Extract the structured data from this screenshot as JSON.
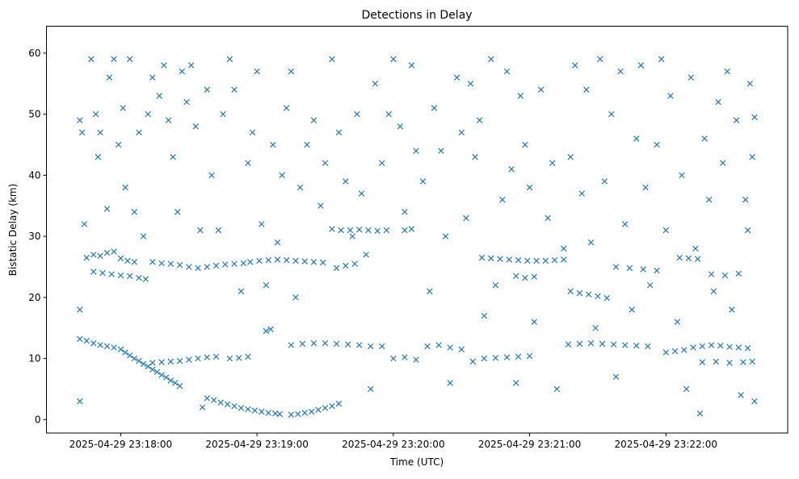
{
  "chart_data": {
    "type": "scatter",
    "title": "Detections in Delay",
    "xlabel": "Time (UTC)",
    "ylabel": "Bistatic Delay (km)",
    "x_unit": "seconds relative to 2025-04-29 23:18:00",
    "xlim": [
      -32.7,
      293.6
    ],
    "ylim": [
      -2.2,
      64.4
    ],
    "grid": false,
    "marker": "x",
    "color": "#1f77b4",
    "x_ticks": [
      {
        "value": 0,
        "label": "2025-04-29 23:18:00"
      },
      {
        "value": 60,
        "label": "2025-04-29 23:19:00"
      },
      {
        "value": 120,
        "label": "2025-04-29 23:20:00"
      },
      {
        "value": 180,
        "label": "2025-04-29 23:21:00"
      },
      {
        "value": 240,
        "label": "2025-04-29 23:22:00"
      }
    ],
    "y_ticks": [
      {
        "value": 0,
        "label": "0"
      },
      {
        "value": 10,
        "label": "10"
      },
      {
        "value": 20,
        "label": "20"
      },
      {
        "value": 30,
        "label": "30"
      },
      {
        "value": 40,
        "label": "40"
      },
      {
        "value": 50,
        "label": "50"
      },
      {
        "value": 60,
        "label": "60"
      }
    ],
    "points": [
      [
        0,
        11.5
      ],
      [
        2,
        11
      ],
      [
        4,
        10.5
      ],
      [
        6,
        10
      ],
      [
        8,
        9.6
      ],
      [
        10,
        9.1
      ],
      [
        12,
        8.7
      ],
      [
        14,
        8.2
      ],
      [
        16,
        7.8
      ],
      [
        18,
        7.3
      ],
      [
        20,
        6.9
      ],
      [
        22,
        6.4
      ],
      [
        24,
        6
      ],
      [
        26,
        5.5
      ],
      [
        38,
        3.5
      ],
      [
        41,
        3.2
      ],
      [
        44,
        2.8
      ],
      [
        47,
        2.5
      ],
      [
        50,
        2.2
      ],
      [
        53,
        1.9
      ],
      [
        56,
        1.7
      ],
      [
        59,
        1.5
      ],
      [
        62,
        1.3
      ],
      [
        65,
        1.1
      ],
      [
        68,
        1
      ],
      [
        70,
        0.9
      ],
      [
        75,
        0.8
      ],
      [
        78,
        0.9
      ],
      [
        81,
        1.1
      ],
      [
        84,
        1.3
      ],
      [
        87,
        1.6
      ],
      [
        90,
        1.9
      ],
      [
        93,
        2.2
      ],
      [
        96,
        2.6
      ],
      [
        -15,
        26.5
      ],
      [
        -12,
        27
      ],
      [
        -9,
        26.8
      ],
      [
        -6,
        27.3
      ],
      [
        -3,
        27.5
      ],
      [
        0,
        26.4
      ],
      [
        3,
        26
      ],
      [
        6,
        25.8
      ],
      [
        -12,
        24.2
      ],
      [
        -8,
        24
      ],
      [
        -4,
        23.8
      ],
      [
        0,
        23.6
      ],
      [
        4,
        23.5
      ],
      [
        8,
        23.2
      ],
      [
        11,
        23
      ],
      [
        14,
        25.8
      ],
      [
        18,
        25.6
      ],
      [
        22,
        25.5
      ],
      [
        26,
        25.3
      ],
      [
        30,
        25
      ],
      [
        34,
        24.8
      ],
      [
        38,
        25
      ],
      [
        42,
        25.2
      ],
      [
        46,
        25.4
      ],
      [
        50,
        25.5
      ],
      [
        54,
        25.6
      ],
      [
        57,
        25.8
      ],
      [
        61,
        26
      ],
      [
        65,
        26.1
      ],
      [
        69,
        26.2
      ],
      [
        73,
        26.1
      ],
      [
        77,
        26
      ],
      [
        81,
        25.9
      ],
      [
        85,
        25.8
      ],
      [
        89,
        25.7
      ],
      [
        95,
        24.8
      ],
      [
        99,
        25.2
      ],
      [
        103,
        25.5
      ],
      [
        159,
        26.5
      ],
      [
        163,
        26.4
      ],
      [
        167,
        26.3
      ],
      [
        171,
        26.2
      ],
      [
        175,
        26.1
      ],
      [
        179,
        26
      ],
      [
        183,
        26
      ],
      [
        187,
        26
      ],
      [
        191,
        26.1
      ],
      [
        195,
        26.2
      ],
      [
        174,
        23.5
      ],
      [
        178,
        23.2
      ],
      [
        182,
        23.4
      ],
      [
        198,
        21
      ],
      [
        202,
        20.7
      ],
      [
        206,
        20.5
      ],
      [
        210,
        20.2
      ],
      [
        214,
        19.9
      ],
      [
        218,
        25
      ],
      [
        224,
        24.8
      ],
      [
        230,
        24.6
      ],
      [
        236,
        24.4
      ],
      [
        246,
        26.5
      ],
      [
        250,
        26.4
      ],
      [
        254,
        26.3
      ],
      [
        260,
        23.8
      ],
      [
        266,
        23.6
      ],
      [
        272,
        23.9
      ],
      [
        -18,
        13.2
      ],
      [
        -15,
        12.9
      ],
      [
        -12,
        12.5
      ],
      [
        -9,
        12.2
      ],
      [
        -6,
        12
      ],
      [
        -3,
        11.8
      ],
      [
        75,
        12.2
      ],
      [
        80,
        12.4
      ],
      [
        85,
        12.5
      ],
      [
        90,
        12.5
      ],
      [
        95,
        12.4
      ],
      [
        100,
        12.3
      ],
      [
        105,
        12.2
      ],
      [
        110,
        12
      ],
      [
        115,
        12
      ],
      [
        120,
        10
      ],
      [
        125,
        10.2
      ],
      [
        130,
        9.8
      ],
      [
        135,
        12
      ],
      [
        140,
        12.2
      ],
      [
        145,
        11.8
      ],
      [
        150,
        11.5
      ],
      [
        155,
        9.5
      ],
      [
        160,
        10
      ],
      [
        165,
        10.1
      ],
      [
        170,
        10.2
      ],
      [
        175,
        10.3
      ],
      [
        180,
        10.4
      ],
      [
        197,
        12.3
      ],
      [
        202,
        12.4
      ],
      [
        207,
        12.5
      ],
      [
        212,
        12.4
      ],
      [
        217,
        12.3
      ],
      [
        222,
        12.2
      ],
      [
        227,
        12.1
      ],
      [
        232,
        12
      ],
      [
        240,
        11
      ],
      [
        244,
        11.2
      ],
      [
        248,
        11.4
      ],
      [
        252,
        11.8
      ],
      [
        256,
        12
      ],
      [
        260,
        12.2
      ],
      [
        264,
        12.1
      ],
      [
        268,
        11.9
      ],
      [
        272,
        11.8
      ],
      [
        276,
        11.7
      ],
      [
        14,
        9.3
      ],
      [
        18,
        9.4
      ],
      [
        22,
        9.5
      ],
      [
        26,
        9.6
      ],
      [
        30,
        9.8
      ],
      [
        34,
        10
      ],
      [
        38,
        10.2
      ],
      [
        42,
        10.3
      ],
      [
        48,
        10
      ],
      [
        52,
        10.1
      ],
      [
        56,
        10.3
      ],
      [
        64,
        14.5
      ],
      [
        66,
        14.8
      ],
      [
        256,
        9.4
      ],
      [
        262,
        9.5
      ],
      [
        268,
        9.3
      ],
      [
        274,
        9.4
      ],
      [
        278,
        9.5
      ],
      [
        93,
        31.2
      ],
      [
        97,
        31
      ],
      [
        101,
        31
      ],
      [
        105,
        31.1
      ],
      [
        109,
        31
      ],
      [
        113,
        30.9
      ],
      [
        117,
        31
      ],
      [
        125,
        31
      ],
      [
        128,
        31.2
      ],
      [
        276,
        31
      ],
      [
        -18,
        49
      ],
      [
        -17,
        47
      ],
      [
        -16,
        32
      ],
      [
        -18,
        18
      ],
      [
        -18,
        3
      ],
      [
        -13,
        59
      ],
      [
        -11,
        50
      ],
      [
        -10,
        43
      ],
      [
        -9,
        47
      ],
      [
        -6,
        34.5
      ],
      [
        -5,
        56
      ],
      [
        -3,
        59
      ],
      [
        -1,
        45
      ],
      [
        1,
        51
      ],
      [
        2,
        38
      ],
      [
        4,
        59
      ],
      [
        6,
        34
      ],
      [
        8,
        47
      ],
      [
        10,
        30
      ],
      [
        12,
        50
      ],
      [
        14,
        56
      ],
      [
        17,
        53
      ],
      [
        19,
        58
      ],
      [
        21,
        49
      ],
      [
        23,
        43
      ],
      [
        25,
        34
      ],
      [
        27,
        57
      ],
      [
        29,
        52
      ],
      [
        31,
        58
      ],
      [
        33,
        48
      ],
      [
        35,
        31
      ],
      [
        36,
        2
      ],
      [
        38,
        54
      ],
      [
        40,
        40
      ],
      [
        43,
        31
      ],
      [
        45,
        50
      ],
      [
        48,
        59
      ],
      [
        50,
        54
      ],
      [
        53,
        21
      ],
      [
        56,
        42
      ],
      [
        58,
        47
      ],
      [
        60,
        57
      ],
      [
        62,
        32
      ],
      [
        64,
        22
      ],
      [
        67,
        45
      ],
      [
        69,
        29
      ],
      [
        71,
        40
      ],
      [
        73,
        51
      ],
      [
        75,
        57
      ],
      [
        77,
        20
      ],
      [
        79,
        38
      ],
      [
        82,
        45
      ],
      [
        85,
        49
      ],
      [
        88,
        35
      ],
      [
        90,
        42
      ],
      [
        93,
        59
      ],
      [
        96,
        47
      ],
      [
        99,
        39
      ],
      [
        102,
        30
      ],
      [
        104,
        50
      ],
      [
        106,
        37
      ],
      [
        108,
        27
      ],
      [
        110,
        5
      ],
      [
        112,
        55
      ],
      [
        115,
        42
      ],
      [
        118,
        50
      ],
      [
        120,
        59
      ],
      [
        123,
        48
      ],
      [
        125,
        34
      ],
      [
        128,
        58
      ],
      [
        130,
        44
      ],
      [
        133,
        39
      ],
      [
        136,
        21
      ],
      [
        138,
        51
      ],
      [
        141,
        44
      ],
      [
        143,
        30
      ],
      [
        145,
        6
      ],
      [
        148,
        56
      ],
      [
        150,
        47
      ],
      [
        152,
        33
      ],
      [
        154,
        55
      ],
      [
        156,
        43
      ],
      [
        158,
        49
      ],
      [
        160,
        17
      ],
      [
        163,
        59
      ],
      [
        165,
        22
      ],
      [
        168,
        36
      ],
      [
        170,
        57
      ],
      [
        172,
        41
      ],
      [
        174,
        6
      ],
      [
        176,
        53
      ],
      [
        178,
        45
      ],
      [
        180,
        38
      ],
      [
        182,
        16
      ],
      [
        185,
        54
      ],
      [
        188,
        33
      ],
      [
        190,
        42
      ],
      [
        192,
        5
      ],
      [
        195,
        28
      ],
      [
        198,
        43
      ],
      [
        200,
        58
      ],
      [
        203,
        37
      ],
      [
        205,
        54
      ],
      [
        207,
        29
      ],
      [
        209,
        15
      ],
      [
        211,
        59
      ],
      [
        213,
        39
      ],
      [
        216,
        50
      ],
      [
        218,
        7
      ],
      [
        220,
        57
      ],
      [
        222,
        32
      ],
      [
        225,
        18
      ],
      [
        227,
        46
      ],
      [
        229,
        58
      ],
      [
        231,
        38
      ],
      [
        233,
        22
      ],
      [
        236,
        45
      ],
      [
        238,
        59
      ],
      [
        240,
        31
      ],
      [
        242,
        53
      ],
      [
        245,
        16
      ],
      [
        247,
        40
      ],
      [
        249,
        5
      ],
      [
        251,
        56
      ],
      [
        253,
        28
      ],
      [
        255,
        1
      ],
      [
        257,
        46
      ],
      [
        259,
        36
      ],
      [
        261,
        21
      ],
      [
        263,
        52
      ],
      [
        265,
        42
      ],
      [
        267,
        57
      ],
      [
        269,
        18
      ],
      [
        271,
        49
      ],
      [
        273,
        4
      ],
      [
        275,
        36
      ],
      [
        277,
        55
      ],
      [
        278,
        43
      ],
      [
        279,
        3
      ],
      [
        279,
        49.5
      ]
    ]
  }
}
